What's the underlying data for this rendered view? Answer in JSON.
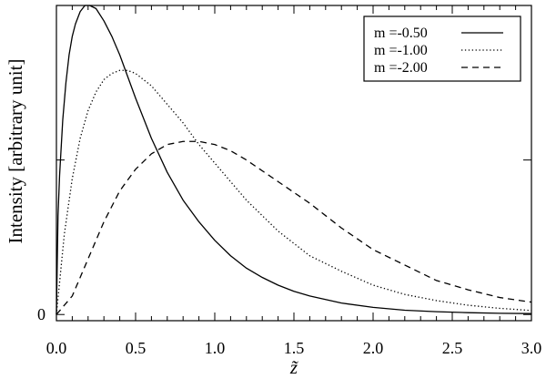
{
  "chart_data": {
    "type": "line",
    "xlabel": "z̃",
    "ylabel": "Intensity [arbitrary unit]",
    "xlim": [
      0,
      3
    ],
    "ylim": [
      -0.02,
      1.0
    ],
    "x_ticks": [
      "0.0",
      "0.5",
      "1.0",
      "1.5",
      "2.0",
      "2.5",
      "3.0"
    ],
    "y_tick_labels": [
      "0"
    ],
    "legend_position": "top-right",
    "grid": false,
    "series": [
      {
        "name": "m =-0.50",
        "style": "solid",
        "x": [
          0,
          0.01,
          0.02,
          0.04,
          0.06,
          0.08,
          0.1,
          0.12,
          0.15,
          0.18,
          0.21,
          0.25,
          0.3,
          0.35,
          0.4,
          0.45,
          0.5,
          0.6,
          0.7,
          0.8,
          0.9,
          1.0,
          1.1,
          1.2,
          1.3,
          1.4,
          1.5,
          1.6,
          1.8,
          2.0,
          2.2,
          2.4,
          2.6,
          2.8,
          3.0
        ],
        "y": [
          0,
          0.32,
          0.45,
          0.63,
          0.75,
          0.84,
          0.9,
          0.94,
          0.98,
          1.0,
          1.0,
          0.99,
          0.95,
          0.9,
          0.84,
          0.77,
          0.7,
          0.57,
          0.46,
          0.37,
          0.3,
          0.24,
          0.19,
          0.15,
          0.12,
          0.095,
          0.075,
          0.06,
          0.037,
          0.023,
          0.014,
          0.009,
          0.006,
          0.004,
          0.003
        ]
      },
      {
        "name": "m =-1.00",
        "style": "dotted",
        "x": [
          0,
          0.05,
          0.1,
          0.15,
          0.2,
          0.25,
          0.3,
          0.35,
          0.4,
          0.45,
          0.5,
          0.6,
          0.7,
          0.8,
          0.9,
          1.0,
          1.2,
          1.4,
          1.6,
          1.8,
          2.0,
          2.2,
          2.4,
          2.6,
          2.8,
          3.0
        ],
        "y": [
          0,
          0.26,
          0.44,
          0.57,
          0.66,
          0.72,
          0.76,
          0.78,
          0.79,
          0.79,
          0.78,
          0.74,
          0.68,
          0.62,
          0.55,
          0.49,
          0.37,
          0.27,
          0.19,
          0.14,
          0.095,
          0.065,
          0.045,
          0.03,
          0.02,
          0.013
        ]
      },
      {
        "name": "m =-2.00",
        "style": "dashed",
        "x": [
          0,
          0.1,
          0.2,
          0.3,
          0.4,
          0.5,
          0.6,
          0.7,
          0.8,
          0.9,
          1.0,
          1.1,
          1.2,
          1.4,
          1.6,
          1.8,
          2.0,
          2.2,
          2.4,
          2.6,
          2.8,
          3.0
        ],
        "y": [
          0,
          0.06,
          0.18,
          0.3,
          0.4,
          0.47,
          0.52,
          0.55,
          0.56,
          0.56,
          0.55,
          0.53,
          0.5,
          0.43,
          0.36,
          0.28,
          0.21,
          0.16,
          0.11,
          0.08,
          0.055,
          0.04
        ]
      }
    ]
  }
}
